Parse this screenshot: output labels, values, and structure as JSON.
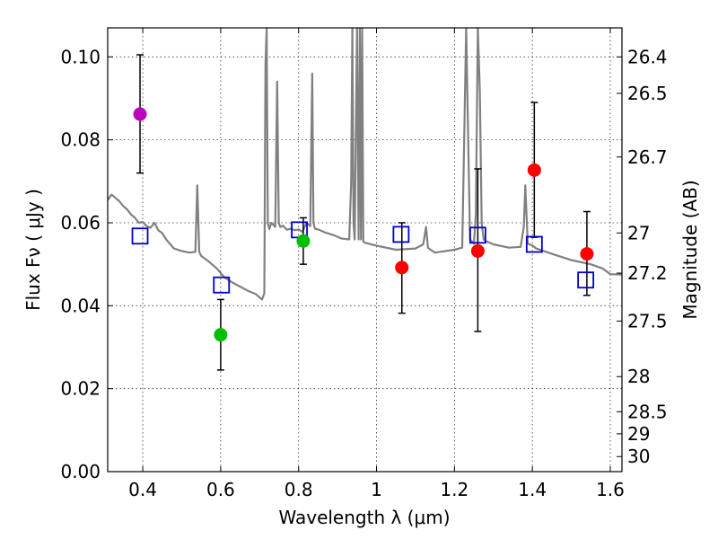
{
  "chart_data": {
    "type": "scatter",
    "xlabel": "Wavelength  λ (μm)",
    "ylabel": "Flux  Fν  ( μJy )",
    "ylabel_right": "Magnitude (AB)",
    "xlim": [
      0.31,
      1.63
    ],
    "ylim": [
      0.0,
      0.107
    ],
    "grid": true,
    "x_ticks": [
      0.4,
      0.6,
      0.8,
      1.0,
      1.2,
      1.4,
      1.6
    ],
    "x_tick_labels": [
      "0.4",
      "0.6",
      "0.8",
      "1",
      "1.2",
      "1.4",
      "1.6"
    ],
    "y_ticks": [
      0.0,
      0.02,
      0.04,
      0.06,
      0.08,
      0.1
    ],
    "y_tick_labels": [
      "0.00",
      "0.02",
      "0.04",
      "0.06",
      "0.08",
      "0.10"
    ],
    "mag_ticks": [
      26.4,
      26.5,
      26.7,
      27,
      27.2,
      27.5,
      28,
      28.5,
      29,
      30
    ],
    "mag_tick_labels": [
      "26.4",
      "26.5",
      "26.7",
      "27",
      "27.2",
      "27.5",
      "28",
      "28.5",
      "29",
      "30"
    ],
    "colors": {
      "spectrum": "#808080",
      "magenta": "#bf00bf",
      "green": "#00bf00",
      "red": "#ff0000",
      "model": "#0000cc",
      "errorbar": "#000000"
    },
    "observed": [
      {
        "x": 0.393,
        "y": 0.0862,
        "err_lo": 0.072,
        "err_hi": 0.1005,
        "color": "magenta"
      },
      {
        "x": 0.6,
        "y": 0.033,
        "err_lo": 0.0245,
        "err_hi": 0.0415,
        "color": "green"
      },
      {
        "x": 0.812,
        "y": 0.0556,
        "err_lo": 0.05,
        "err_hi": 0.0612,
        "color": "green"
      },
      {
        "x": 1.065,
        "y": 0.0492,
        "err_lo": 0.0382,
        "err_hi": 0.06,
        "color": "red"
      },
      {
        "x": 1.26,
        "y": 0.0532,
        "err_lo": 0.0338,
        "err_hi": 0.073,
        "color": "red"
      },
      {
        "x": 1.405,
        "y": 0.0727,
        "err_lo": 0.0565,
        "err_hi": 0.089,
        "color": "red"
      },
      {
        "x": 1.54,
        "y": 0.0525,
        "err_lo": 0.0425,
        "err_hi": 0.0627,
        "color": "red"
      }
    ],
    "model_points": [
      {
        "x": 0.393,
        "y": 0.0568
      },
      {
        "x": 0.602,
        "y": 0.045
      },
      {
        "x": 0.802,
        "y": 0.0583
      },
      {
        "x": 1.063,
        "y": 0.0572
      },
      {
        "x": 1.26,
        "y": 0.057
      },
      {
        "x": 1.405,
        "y": 0.0548
      },
      {
        "x": 1.537,
        "y": 0.0462
      }
    ],
    "spectrum": {
      "x": [
        0.31,
        0.32,
        0.33,
        0.34,
        0.35,
        0.36,
        0.37,
        0.38,
        0.39,
        0.4,
        0.41,
        0.42,
        0.43,
        0.44,
        0.45,
        0.46,
        0.48,
        0.5,
        0.52,
        0.535,
        0.54,
        0.545,
        0.55,
        0.57,
        0.59,
        0.61,
        0.63,
        0.65,
        0.67,
        0.69,
        0.7,
        0.706,
        0.712,
        0.715,
        0.718,
        0.721,
        0.725,
        0.73,
        0.74,
        0.745,
        0.749,
        0.753,
        0.76,
        0.77,
        0.78,
        0.79,
        0.8,
        0.81,
        0.82,
        0.83,
        0.835,
        0.838,
        0.842,
        0.85,
        0.87,
        0.89,
        0.91,
        0.93,
        0.935,
        0.938,
        0.941,
        0.944,
        0.95,
        0.954,
        0.957,
        0.96,
        0.963,
        0.966,
        0.97,
        1.0,
        1.05,
        1.1,
        1.12,
        1.127,
        1.132,
        1.137,
        1.15,
        1.2,
        1.22,
        1.225,
        1.23,
        1.24,
        1.25,
        1.255,
        1.26,
        1.265,
        1.27,
        1.275,
        1.28,
        1.3,
        1.34,
        1.37,
        1.378,
        1.382,
        1.388,
        1.4,
        1.41,
        1.42,
        1.45,
        1.5,
        1.55,
        1.58,
        1.6,
        1.63
      ],
      "y": [
        0.0655,
        0.0668,
        0.066,
        0.0652,
        0.064,
        0.0632,
        0.062,
        0.0612,
        0.06,
        0.0602,
        0.0592,
        0.0588,
        0.06,
        0.0582,
        0.0575,
        0.056,
        0.0538,
        0.0532,
        0.0528,
        0.053,
        0.069,
        0.053,
        0.052,
        0.0506,
        0.049,
        0.0468,
        0.0456,
        0.0446,
        0.0436,
        0.0428,
        0.042,
        0.0415,
        0.043,
        0.098,
        0.107,
        0.06,
        0.0585,
        0.06,
        0.059,
        0.094,
        0.06,
        0.059,
        0.0593,
        0.0583,
        0.0586,
        0.0582,
        0.0584,
        0.0578,
        0.06,
        0.0592,
        0.096,
        0.06,
        0.0586,
        0.0584,
        0.0576,
        0.057,
        0.0562,
        0.056,
        0.07,
        0.107,
        0.06,
        0.056,
        0.107,
        0.056,
        0.107,
        0.056,
        0.107,
        0.0555,
        0.0552,
        0.0545,
        0.0535,
        0.0538,
        0.0548,
        0.059,
        0.054,
        0.0536,
        0.0528,
        0.0535,
        0.054,
        0.08,
        0.107,
        0.056,
        0.055,
        0.062,
        0.107,
        0.092,
        0.06,
        0.056,
        0.0556,
        0.0548,
        0.054,
        0.0542,
        0.059,
        0.069,
        0.055,
        0.0545,
        0.0538,
        0.0535,
        0.0525,
        0.051,
        0.05,
        0.049,
        0.0476,
        0.0475
      ]
    }
  }
}
